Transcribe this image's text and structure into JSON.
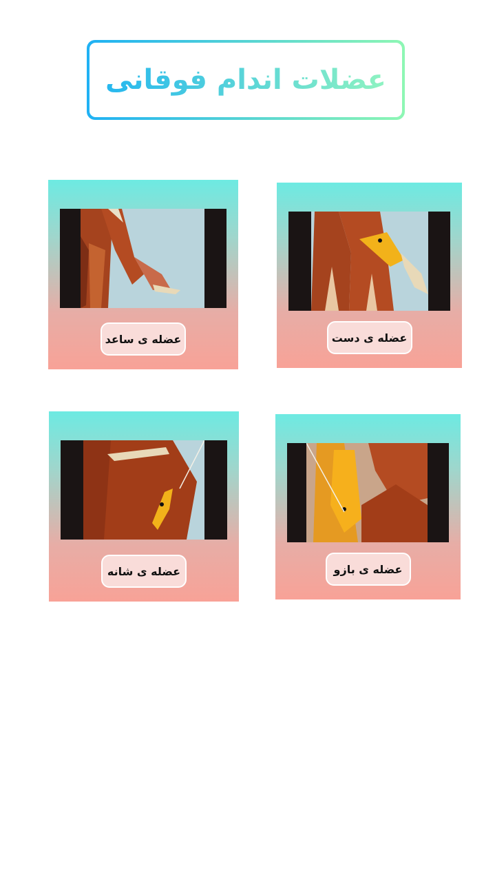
{
  "header": {
    "title": "عضلات اندام فوقانی"
  },
  "cards": [
    {
      "label": "عضله ی ساعد",
      "image": "forearm-muscle-image"
    },
    {
      "label": "عضله ی دست",
      "image": "hand-muscle-image"
    },
    {
      "label": "عضله ی شانه",
      "image": "shoulder-muscle-image"
    },
    {
      "label": "عضله ی بازو",
      "image": "arm-muscle-image"
    }
  ],
  "colors": {
    "title_gradient_start": "#1fb1f4",
    "title_gradient_end": "#8ef7b4",
    "card_gradient_top": "#6deae2",
    "card_gradient_bottom": "#f8a297",
    "button_bg": "#f9dcd9"
  }
}
